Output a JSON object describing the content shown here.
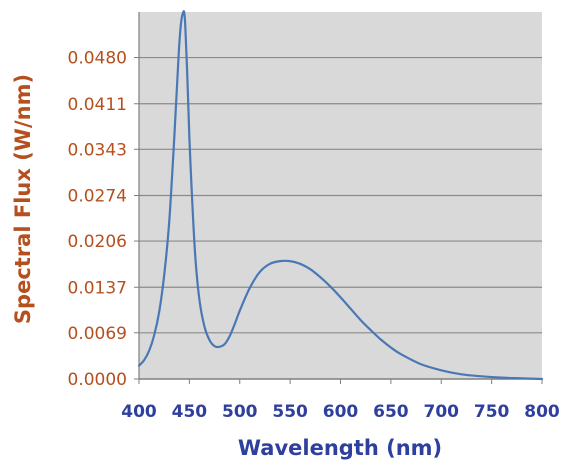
{
  "chart_data": {
    "type": "line",
    "title": "",
    "xlabel": "Wavelength (nm)",
    "ylabel": "Spectral Flux (W/nm)",
    "xlim": [
      400,
      800
    ],
    "ylim": [
      0,
      0.0548
    ],
    "x_ticks": [
      "400",
      "450",
      "500",
      "550",
      "600",
      "650",
      "700",
      "750",
      "800"
    ],
    "y_ticks": [
      "0.0000",
      "0.0069",
      "0.0137",
      "0.0206",
      "0.0274",
      "0.0343",
      "0.0411",
      "0.0480"
    ],
    "y_tick_values": [
      0,
      0.0069,
      0.0137,
      0.0206,
      0.0274,
      0.0343,
      0.0411,
      0.048
    ],
    "grid": true,
    "background_color": "#d9d9d9",
    "line_color": "#4a78b5",
    "series": [
      {
        "x": [
          400,
          405,
          410,
          415,
          420,
          425,
          430,
          435,
          438,
          440,
          442,
          444,
          445,
          446,
          448,
          450,
          453,
          456,
          460,
          465,
          470,
          475,
          480,
          485,
          490,
          495,
          500,
          510,
          520,
          530,
          540,
          550,
          560,
          570,
          580,
          590,
          600,
          610,
          620,
          630,
          640,
          650,
          660,
          680,
          700,
          720,
          740,
          760,
          780,
          800
        ],
        "y": [
          0.002,
          0.0028,
          0.0042,
          0.0065,
          0.01,
          0.0155,
          0.0235,
          0.036,
          0.0445,
          0.05,
          0.0535,
          0.0548,
          0.0546,
          0.0525,
          0.045,
          0.036,
          0.026,
          0.018,
          0.0118,
          0.0078,
          0.0058,
          0.0049,
          0.0048,
          0.0052,
          0.0064,
          0.0082,
          0.0102,
          0.0136,
          0.016,
          0.0172,
          0.0176,
          0.0176,
          0.0172,
          0.0164,
          0.0152,
          0.0138,
          0.0122,
          0.0105,
          0.0088,
          0.0073,
          0.0059,
          0.0047,
          0.0037,
          0.0022,
          0.0013,
          0.0007,
          0.0004,
          0.0002,
          0.0001,
          0.0
        ]
      }
    ]
  }
}
